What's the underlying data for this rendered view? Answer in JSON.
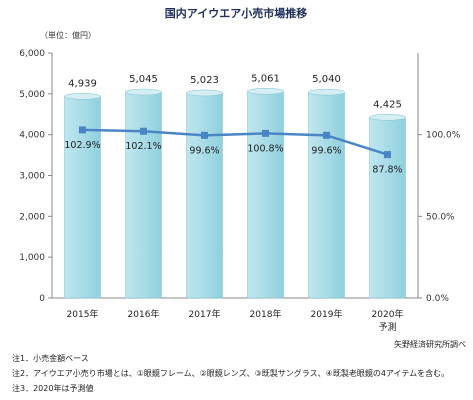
{
  "chart_data": {
    "type": "bar",
    "title": "国内アイウエア小売市場推移",
    "unit_label": "（単位：億円）",
    "categories": [
      "2015年",
      "2016年",
      "2017年",
      "2018年",
      "2019年",
      "2020年"
    ],
    "category_sublabels": [
      "",
      "",
      "",
      "",
      "",
      "予測"
    ],
    "series": [
      {
        "type": "bar",
        "axis": "left",
        "values": [
          4939,
          5045,
          5023,
          5061,
          5040,
          4425
        ],
        "labels": [
          "4,939",
          "5,045",
          "5,023",
          "5,061",
          "5,040",
          "4,425"
        ],
        "color": "#a9dce7"
      },
      {
        "type": "line",
        "axis": "right",
        "values": [
          102.9,
          102.1,
          99.6,
          100.8,
          99.6,
          87.8
        ],
        "labels": [
          "102.9%",
          "102.1%",
          "99.6%",
          "100.8%",
          "99.6%",
          "87.8%"
        ],
        "color": "#4a86c5"
      }
    ],
    "y_left": {
      "min": 0,
      "max": 6000,
      "ticks": [
        0,
        1000,
        2000,
        3000,
        4000,
        5000,
        6000
      ],
      "tick_labels": [
        "0",
        "1,000",
        "2,000",
        "3,000",
        "4,000",
        "5,000",
        "6,000"
      ]
    },
    "y_right": {
      "min": 0,
      "max": 150,
      "ticks": [
        0,
        50,
        100
      ],
      "tick_labels": [
        "0.0%",
        "50.0%",
        "100.0%"
      ]
    },
    "grid": false,
    "notes": [
      "注1．小売金額ベース",
      "注2．アイウエア小売り市場とは、①眼鏡フレーム、②眼鏡レンズ、③既製サングラス、④既製老眼鏡の4アイテムを含む。",
      "注3．2020年は予測値"
    ],
    "source": "矢野経済研究所調べ"
  }
}
